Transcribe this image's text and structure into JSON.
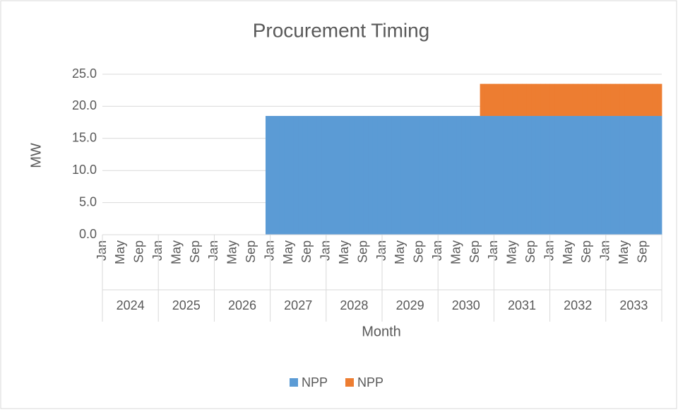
{
  "chart_data": {
    "type": "stacked-area",
    "title": "Procurement Timing",
    "x_label": "Month",
    "y_label": "MW",
    "categories": [
      "Jan",
      null,
      null,
      null,
      "May",
      null,
      null,
      null,
      "Sep",
      null,
      null,
      null,
      "Jan",
      null,
      null,
      null,
      "May",
      null,
      null,
      null,
      "Sep",
      null,
      null,
      null,
      "Jan",
      null,
      null,
      null,
      "May",
      null,
      null,
      null,
      "Sep",
      null,
      null,
      null,
      "Jan",
      null,
      null,
      null,
      "May",
      null,
      null,
      null,
      "Sep",
      null,
      null,
      null,
      "Jan",
      null,
      null,
      null,
      "May",
      null,
      null,
      null,
      "Sep",
      null,
      null,
      null,
      "Jan",
      null,
      null,
      null,
      "May",
      null,
      null,
      null,
      "Sep",
      null,
      null,
      null,
      "Jan",
      null,
      null,
      null,
      "May",
      null,
      null,
      null,
      "Sep",
      null,
      null,
      null,
      "Jan",
      null,
      null,
      null,
      "May",
      null,
      null,
      null,
      "Sep",
      null,
      null,
      null,
      "Jan",
      null,
      null,
      null,
      "May",
      null,
      null,
      null,
      "Sep",
      null,
      null,
      null,
      "Jan",
      null,
      null,
      null,
      "May",
      null,
      null,
      null,
      "Sep",
      null,
      null,
      null
    ],
    "groups": [
      "2024",
      "2025",
      "2026",
      "2027",
      "2028",
      "2029",
      "2030",
      "2031",
      "2032",
      "2033"
    ],
    "series": [
      {
        "name": "NPP",
        "color": "#5b9bd5",
        "values": [
          0,
          0,
          0,
          0,
          0,
          0,
          0,
          0,
          0,
          0,
          0,
          0,
          0,
          0,
          0,
          0,
          0,
          0,
          0,
          0,
          0,
          0,
          0,
          0,
          0,
          0,
          0,
          0,
          0,
          0,
          0,
          0,
          0,
          0,
          0,
          18.5,
          18.5,
          18.5,
          18.5,
          18.5,
          18.5,
          18.5,
          18.5,
          18.5,
          18.5,
          18.5,
          18.5,
          18.5,
          18.5,
          18.5,
          18.5,
          18.5,
          18.5,
          18.5,
          18.5,
          18.5,
          18.5,
          18.5,
          18.5,
          18.5,
          18.5,
          18.5,
          18.5,
          18.5,
          18.5,
          18.5,
          18.5,
          18.5,
          18.5,
          18.5,
          18.5,
          18.5,
          18.5,
          18.5,
          18.5,
          18.5,
          18.5,
          18.5,
          18.5,
          18.5,
          18.5,
          18.5,
          18.5,
          18.5,
          18.5,
          18.5,
          18.5,
          18.5,
          18.5,
          18.5,
          18.5,
          18.5,
          18.5,
          18.5,
          18.5,
          18.5,
          18.5,
          18.5,
          18.5,
          18.5,
          18.5,
          18.5,
          18.5,
          18.5,
          18.5,
          18.5,
          18.5,
          18.5,
          18.5,
          18.5,
          18.5,
          18.5,
          18.5,
          18.5,
          18.5,
          18.5,
          18.5,
          18.5,
          18.5,
          18.5
        ]
      },
      {
        "name": "NPP",
        "color": "#ed7d31",
        "values": [
          0,
          0,
          0,
          0,
          0,
          0,
          0,
          0,
          0,
          0,
          0,
          0,
          0,
          0,
          0,
          0,
          0,
          0,
          0,
          0,
          0,
          0,
          0,
          0,
          0,
          0,
          0,
          0,
          0,
          0,
          0,
          0,
          0,
          0,
          0,
          0,
          0,
          0,
          0,
          0,
          0,
          0,
          0,
          0,
          0,
          0,
          0,
          0,
          0,
          0,
          0,
          0,
          0,
          0,
          0,
          0,
          0,
          0,
          0,
          0,
          0,
          0,
          0,
          0,
          0,
          0,
          0,
          0,
          0,
          0,
          0,
          0,
          0,
          0,
          0,
          0,
          0,
          0,
          0,
          0,
          0,
          5,
          5,
          5,
          5,
          5,
          5,
          5,
          5,
          5,
          5,
          5,
          5,
          5,
          5,
          5,
          5,
          5,
          5,
          5,
          5,
          5,
          5,
          5,
          5,
          5,
          5,
          5,
          5,
          5,
          5,
          5,
          5,
          5,
          5,
          5,
          5,
          5,
          5,
          5
        ]
      }
    ],
    "ylim": [
      0,
      25
    ],
    "yticks": [
      {
        "value": 0,
        "label": "0.0"
      },
      {
        "value": 5,
        "label": "5.0"
      },
      {
        "value": 10,
        "label": "10.0"
      },
      {
        "value": 15,
        "label": "15.0"
      },
      {
        "value": 20,
        "label": "20.0"
      },
      {
        "value": 25,
        "label": "25.0"
      }
    ],
    "grid": true,
    "legend": "bottom"
  }
}
